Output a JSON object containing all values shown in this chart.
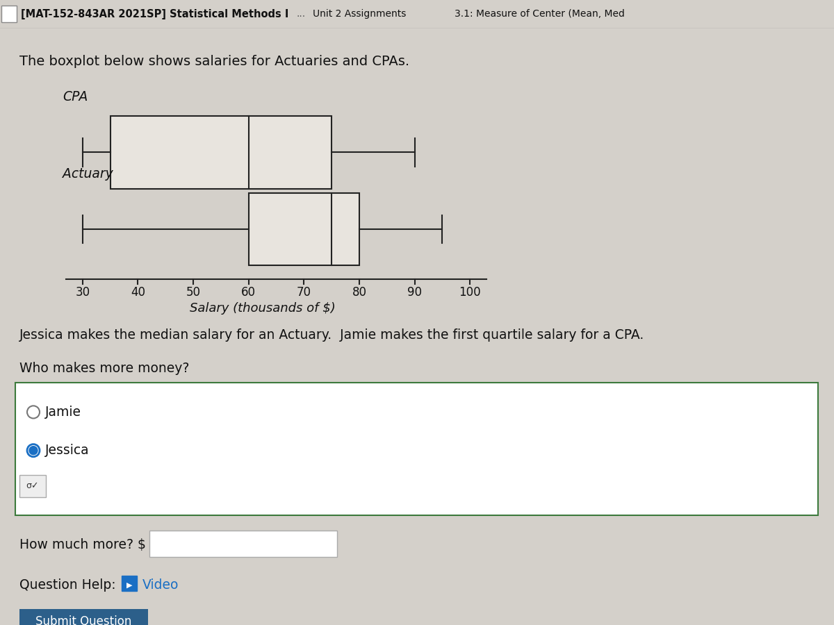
{
  "title_bar": "[MAT-152-843AR 2021SP] Statistical Methods I",
  "title_bar_ellipsis": "...",
  "title_bar2": "Unit 2 Assignments",
  "title_bar3": "3.1: Measure of Center (Mean, Med",
  "description": "The boxplot below shows salaries for Actuaries and CPAs.",
  "cpa": {
    "whisker_low": 30,
    "q1": 35,
    "median": 60,
    "q3": 75,
    "whisker_high": 90
  },
  "actuary": {
    "whisker_low": 30,
    "q1": 60,
    "median": 75,
    "q3": 80,
    "whisker_high": 95
  },
  "xmin": 27,
  "xmax": 103,
  "xlabel": "Salary (thousands of $)",
  "ylabel_cpa": "CPA",
  "ylabel_actuary": "Actuary",
  "xticks": [
    30,
    40,
    50,
    60,
    70,
    80,
    90,
    100
  ],
  "bg_color": "#d4d0ca",
  "plot_bg_color": "#d4d0ca",
  "box_facecolor": "#e8e4de",
  "box_edgecolor": "#222222",
  "text_color": "#111111",
  "jessica_text": "Jessica makes the median salary for an Actuary.  Jamie makes the first quartile salary for a CPA.",
  "who_text": "Who makes more money?",
  "jamie_text": "Jamie",
  "jessica_option": "Jessica",
  "how_much_text": "How much more? $",
  "question_help_text": "Question Help:",
  "video_text": "Video",
  "submit_text": "Submit Question",
  "submit_bg": "#2c5f8a",
  "submit_fg": "white",
  "radio_border_color": "#3d7a3d",
  "header_bg": "#f0eeeb",
  "header_text_color": "#111111"
}
